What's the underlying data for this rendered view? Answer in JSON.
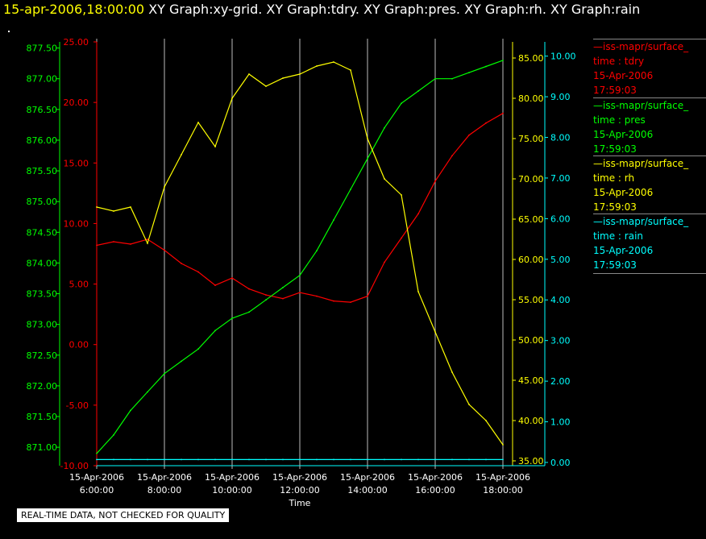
{
  "header": {
    "timestamp": "15-apr-2006,18:00:00",
    "graphs": "XY Graph:xy-grid.  XY Graph:tdry.  XY Graph:pres.  XY Graph:rh.  XY Graph:rain"
  },
  "colors": {
    "tdry": "#ff0000",
    "pres": "#00ff00",
    "rh": "#ffff00",
    "rain": "#00ffff",
    "grid": "#bbbbbb",
    "background": "#000000"
  },
  "legend": [
    {
      "name": "—iss-mapr/surface_",
      "var": "time : tdry",
      "date": "15-Apr-2006",
      "time": "17:59:03",
      "color": "#ff0000"
    },
    {
      "name": "—iss-mapr/surface_",
      "var": "time : pres",
      "date": "15-Apr-2006",
      "time": "17:59:03",
      "color": "#00ff00"
    },
    {
      "name": "—iss-mapr/surface_",
      "var": "time : rh",
      "date": "15-Apr-2006",
      "time": "17:59:03",
      "color": "#ffff00"
    },
    {
      "name": "—iss-mapr/surface_",
      "var": "time : rain",
      "date": "15-Apr-2006",
      "time": "17:59:03",
      "color": "#00ffff"
    }
  ],
  "disclaimer": "REAL-TIME DATA, NOT CHECKED FOR QUALITY",
  "chart_data": {
    "type": "line",
    "xlabel": "Time",
    "xticks": [
      {
        "hour": 6,
        "date": "15-Apr-2006",
        "time": "6:00:00"
      },
      {
        "hour": 8,
        "date": "15-Apr-2006",
        "time": "8:00:00"
      },
      {
        "hour": 10,
        "date": "15-Apr-2006",
        "time": "10:00:00"
      },
      {
        "hour": 12,
        "date": "15-Apr-2006",
        "time": "12:00:00"
      },
      {
        "hour": 14,
        "date": "15-Apr-2006",
        "time": "14:00:00"
      },
      {
        "hour": 16,
        "date": "15-Apr-2006",
        "time": "16:00:00"
      },
      {
        "hour": 18,
        "date": "15-Apr-2006",
        "time": "18:00:00"
      }
    ],
    "x": [
      6.0,
      6.5,
      7.0,
      7.5,
      8.0,
      8.5,
      9.0,
      9.5,
      10.0,
      10.5,
      11.0,
      11.5,
      12.0,
      12.5,
      13.0,
      13.5,
      14.0,
      14.5,
      15.0,
      15.5,
      16.0,
      16.5,
      17.0,
      17.5,
      18.0
    ],
    "axes": {
      "tdry": {
        "ylim": [
          -10,
          25
        ],
        "ticks": [
          "-10.00",
          "-5.00",
          "0.00",
          "5.00",
          "10.00",
          "15.00",
          "20.00",
          "25.00"
        ],
        "side": "left"
      },
      "pres": {
        "ylim": [
          870.7,
          877.6
        ],
        "ticks": [
          "871.00",
          "871.50",
          "872.00",
          "872.50",
          "873.00",
          "873.50",
          "874.00",
          "874.50",
          "875.00",
          "875.50",
          "876.00",
          "876.50",
          "877.00",
          "877.50"
        ],
        "side": "left"
      },
      "rh": {
        "ylim": [
          34.4,
          87.0
        ],
        "ticks": [
          "35.00",
          "40.00",
          "45.00",
          "50.00",
          "55.00",
          "60.00",
          "65.00",
          "70.00",
          "75.00",
          "80.00",
          "85.00"
        ],
        "side": "right"
      },
      "rain": {
        "ylim": [
          -0.08,
          10.35
        ],
        "ticks": [
          "0.00",
          "1.00",
          "2.00",
          "3.00",
          "4.00",
          "5.00",
          "6.00",
          "7.00",
          "8.00",
          "9.00",
          "10.00"
        ],
        "side": "right"
      }
    },
    "series": [
      {
        "name": "tdry",
        "axis": "tdry",
        "values": [
          8.2,
          8.5,
          8.3,
          8.7,
          7.8,
          6.7,
          6.0,
          4.9,
          5.5,
          4.6,
          4.1,
          3.8,
          4.3,
          4.0,
          3.6,
          3.5,
          4.0,
          6.8,
          8.8,
          10.8,
          13.5,
          15.6,
          17.3,
          18.3,
          19.1
        ]
      },
      {
        "name": "pres",
        "axis": "pres",
        "values": [
          870.9,
          871.2,
          871.6,
          871.9,
          872.2,
          872.4,
          872.6,
          872.9,
          873.1,
          873.2,
          873.4,
          873.6,
          873.8,
          874.2,
          874.7,
          875.2,
          875.7,
          876.2,
          876.6,
          876.8,
          877.0,
          877.0,
          877.1,
          877.2,
          877.3
        ]
      },
      {
        "name": "rh",
        "axis": "rh",
        "values": [
          66.5,
          66.0,
          66.5,
          62.0,
          69.0,
          73.0,
          77.0,
          74.0,
          80.0,
          83.0,
          81.5,
          82.5,
          83.0,
          84.0,
          84.5,
          83.5,
          75.0,
          70.0,
          68.0,
          56.0,
          51.0,
          46.0,
          42.0,
          40.0,
          37.0
        ]
      },
      {
        "name": "rain",
        "axis": "rain",
        "values": [
          0.07,
          0.07,
          0.07,
          0.07,
          0.07,
          0.07,
          0.07,
          0.07,
          0.07,
          0.07,
          0.07,
          0.07,
          0.07,
          0.07,
          0.07,
          0.07,
          0.07,
          0.07,
          0.07,
          0.07,
          0.07,
          0.07,
          0.07,
          0.07,
          0.07
        ]
      }
    ]
  }
}
